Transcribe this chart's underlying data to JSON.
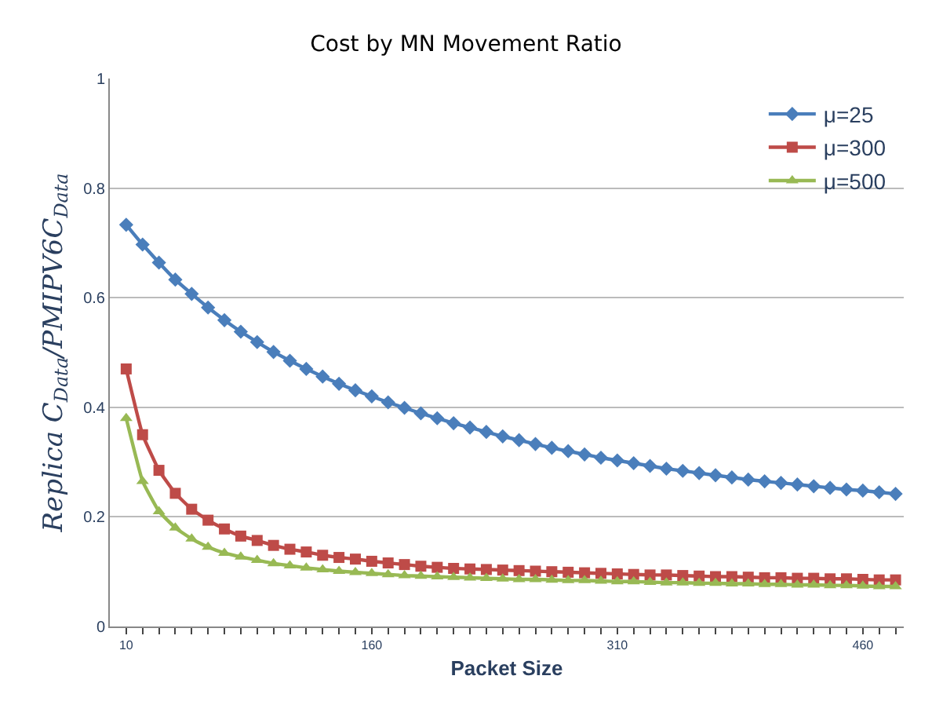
{
  "chart_data": {
    "type": "line",
    "title": "Cost by MN Movement Ratio",
    "xlabel": "Packet Size",
    "ylabel": "Replica C$_{Data}$/PMIPV6C$_{Data}$",
    "categories": [
      "10",
      null,
      null,
      null,
      null,
      null,
      null,
      null,
      null,
      null,
      null,
      null,
      null,
      null,
      null,
      "160",
      null,
      null,
      null,
      null,
      null,
      null,
      null,
      null,
      null,
      null,
      null,
      null,
      null,
      null,
      "310",
      null,
      null,
      null,
      null,
      null,
      null,
      null,
      null,
      null,
      null,
      null,
      null,
      null,
      null,
      "460",
      null,
      null
    ],
    "ylim": [
      0,
      1
    ],
    "yticks": [
      0,
      0.2,
      0.4,
      0.6,
      0.8,
      1
    ],
    "grid": "y",
    "legend": "top right",
    "line_style": "solid",
    "series": [
      {
        "name": "μ=25",
        "color": "#4a7ebb",
        "marker": "diamond",
        "values": [
          0.733,
          0.697,
          0.664,
          0.633,
          0.607,
          0.582,
          0.559,
          0.538,
          0.519,
          0.501,
          0.485,
          0.47,
          0.456,
          0.443,
          0.431,
          0.42,
          0.409,
          0.399,
          0.389,
          0.38,
          0.371,
          0.363,
          0.355,
          0.347,
          0.34,
          0.333,
          0.326,
          0.32,
          0.314,
          0.308,
          0.303,
          0.298,
          0.293,
          0.288,
          0.284,
          0.28,
          0.276,
          0.272,
          0.268,
          0.265,
          0.262,
          0.259,
          0.256,
          0.253,
          0.25,
          0.248,
          0.245,
          0.242
        ]
      },
      {
        "name": "μ=300",
        "color": "#be4b48",
        "marker": "square",
        "values": [
          0.47,
          0.35,
          0.285,
          0.243,
          0.214,
          0.194,
          0.178,
          0.165,
          0.157,
          0.148,
          0.141,
          0.136,
          0.13,
          0.126,
          0.123,
          0.119,
          0.116,
          0.113,
          0.11,
          0.108,
          0.106,
          0.105,
          0.104,
          0.103,
          0.102,
          0.101,
          0.1,
          0.099,
          0.098,
          0.097,
          0.096,
          0.095,
          0.094,
          0.094,
          0.093,
          0.092,
          0.091,
          0.091,
          0.09,
          0.089,
          0.089,
          0.088,
          0.088,
          0.087,
          0.087,
          0.086,
          0.085,
          0.085
        ]
      },
      {
        "name": "μ=500",
        "color": "#98b954",
        "marker": "triangle",
        "values": [
          0.38,
          0.265,
          0.21,
          0.18,
          0.16,
          0.145,
          0.134,
          0.127,
          0.121,
          0.115,
          0.111,
          0.107,
          0.104,
          0.101,
          0.099,
          0.097,
          0.095,
          0.093,
          0.092,
          0.091,
          0.09,
          0.089,
          0.088,
          0.087,
          0.086,
          0.086,
          0.085,
          0.084,
          0.084,
          0.083,
          0.082,
          0.082,
          0.081,
          0.08,
          0.08,
          0.079,
          0.079,
          0.078,
          0.078,
          0.077,
          0.077,
          0.076,
          0.076,
          0.075,
          0.075,
          0.074,
          0.073,
          0.073
        ]
      }
    ]
  }
}
